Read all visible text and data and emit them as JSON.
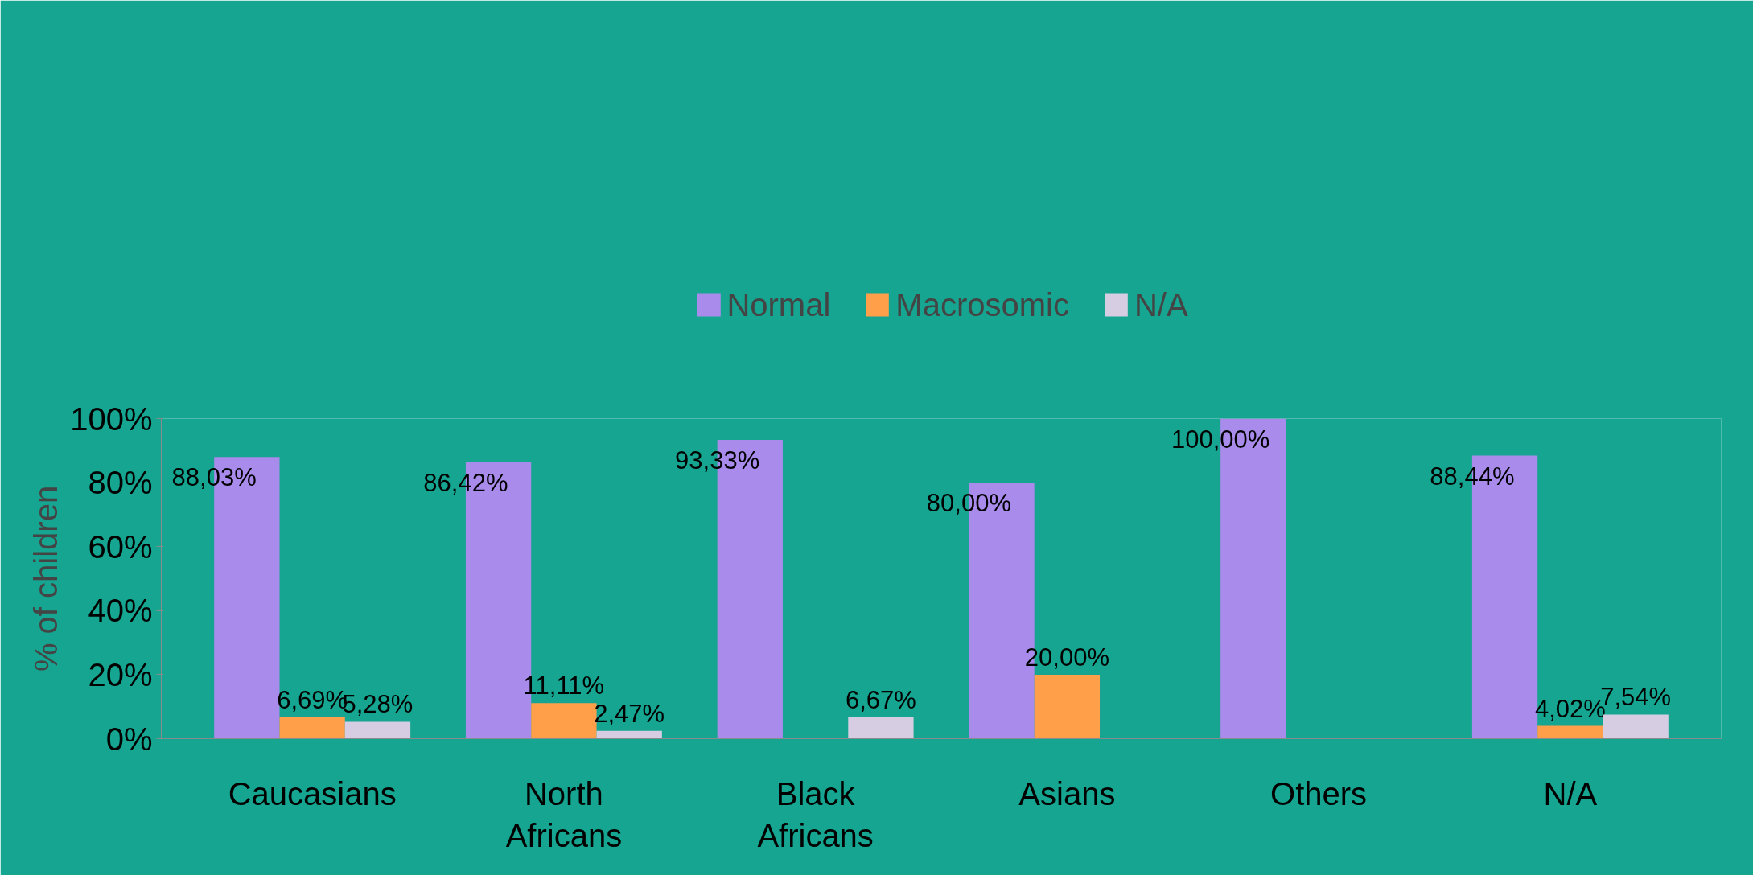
{
  "chart_data": {
    "type": "bar",
    "ylabel": "% of children",
    "categories": [
      "Caucasians",
      "North Africans",
      "Black Africans",
      "Asians",
      "Others",
      "N/A"
    ],
    "series": [
      {
        "name": "Normal",
        "color": "#a98beb",
        "values": [
          88.03,
          86.42,
          93.33,
          80.0,
          100.0,
          88.44
        ],
        "value_labels": [
          "88,03%",
          "86,42%",
          "93,33%",
          "80,00%",
          "100,00%",
          "88,44%"
        ]
      },
      {
        "name": "Macrosomic",
        "color": "#ff9f4a",
        "values": [
          6.69,
          11.11,
          null,
          20.0,
          null,
          4.02
        ],
        "value_labels": [
          "6,69%",
          "11,11%",
          null,
          "20,00%",
          null,
          "4,02%"
        ]
      },
      {
        "name": "N/A",
        "color": "#d6cde3",
        "values": [
          5.28,
          2.47,
          6.67,
          null,
          null,
          7.54
        ],
        "value_labels": [
          "5,28%",
          "2,47%",
          "6,67%",
          null,
          null,
          "7,54%"
        ]
      }
    ],
    "ylim": [
      0,
      100
    ],
    "yticks": [
      {
        "value": 0,
        "label": "0%"
      },
      {
        "value": 20,
        "label": "20%"
      },
      {
        "value": 40,
        "label": "40%"
      },
      {
        "value": 60,
        "label": "60%"
      },
      {
        "value": 80,
        "label": "80%"
      },
      {
        "value": 100,
        "label": "100%"
      }
    ],
    "grid": false,
    "legend": "top"
  }
}
